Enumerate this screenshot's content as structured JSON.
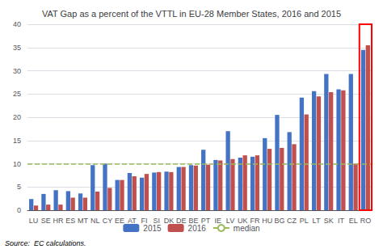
{
  "chart_data": {
    "type": "bar",
    "title": "VAT Gap as a percent of the VTTL in EU-28 Member States, 2016 and 2015",
    "categories": [
      "LU",
      "SE",
      "HR",
      "ES",
      "MT",
      "NL",
      "CY",
      "EE",
      "AT",
      "FI",
      "SI",
      "DK",
      "DE",
      "BE",
      "PT",
      "IE",
      "LV",
      "UK",
      "FR",
      "HU",
      "BG",
      "CZ",
      "PL",
      "LT",
      "SK",
      "IT",
      "EL",
      "RO"
    ],
    "series": [
      {
        "name": "2015",
        "type": "bar",
        "color": "#4472C4",
        "values": [
          2.4,
          3.5,
          4.3,
          4.1,
          3.6,
          9.7,
          10.0,
          6.5,
          8.0,
          7.0,
          8.1,
          8.3,
          9.3,
          9.7,
          13.0,
          10.8,
          17.0,
          11.3,
          11.5,
          15.5,
          20.5,
          16.8,
          24.2,
          25.6,
          29.3,
          26.0,
          29.3,
          34.5
        ]
      },
      {
        "name": "2016",
        "type": "bar",
        "color": "#C0504D",
        "values": [
          1.0,
          1.2,
          1.2,
          2.7,
          2.7,
          4.0,
          4.8,
          6.5,
          7.3,
          7.8,
          8.2,
          8.2,
          9.3,
          9.6,
          9.8,
          10.7,
          11.0,
          11.8,
          11.8,
          13.2,
          13.4,
          14.2,
          20.6,
          24.5,
          25.4,
          25.8,
          10.0,
          35.5
        ]
      },
      {
        "name": "median",
        "type": "hline",
        "color": "#9BBB59",
        "line_style": "dashed",
        "value": 10.0
      }
    ],
    "highlight": {
      "category": "RO",
      "color": "#FF0000"
    },
    "annotation": "Source:  EC calculations.",
    "ylim": [
      0,
      40
    ],
    "yticks": [
      0,
      5,
      10,
      15,
      20,
      25,
      30,
      35,
      40
    ],
    "grid": true,
    "legend": "bottom"
  }
}
